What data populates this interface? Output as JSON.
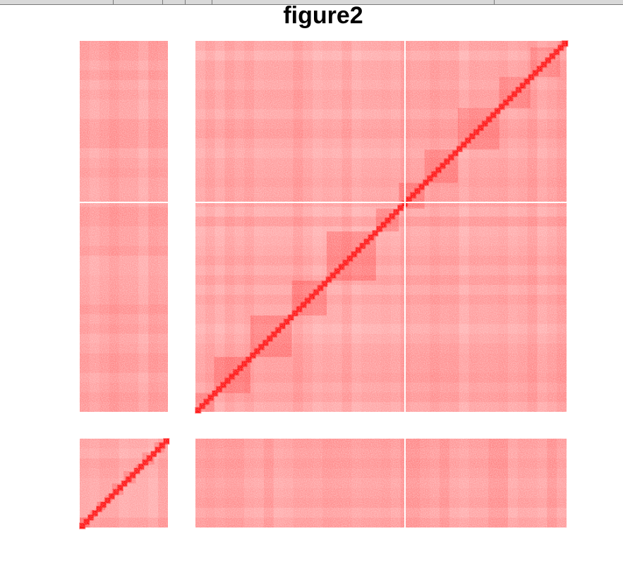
{
  "window": {
    "topbar_color": "#d9d9d9"
  },
  "chart_data": {
    "type": "heatmap",
    "title": "figure2",
    "xlabel": "",
    "ylabel": "",
    "grid": false,
    "legend": "none",
    "colormap": {
      "low": "#ffffff",
      "high": "#ff0000"
    },
    "blocks": [
      {
        "name": "",
        "row": 0,
        "col": 0,
        "diagonal": false
      },
      {
        "name": "",
        "row": 0,
        "col": 1,
        "diagonal": true
      },
      {
        "name": "",
        "row": 1,
        "col": 0,
        "diagonal": true
      },
      {
        "name": "",
        "row": 1,
        "col": 1,
        "diagonal": false
      }
    ],
    "block_sizes_relative": {
      "small": 0.24,
      "large": 1.0
    },
    "diagonal_intensity": 0.95,
    "background_intensity": 0.25
  }
}
